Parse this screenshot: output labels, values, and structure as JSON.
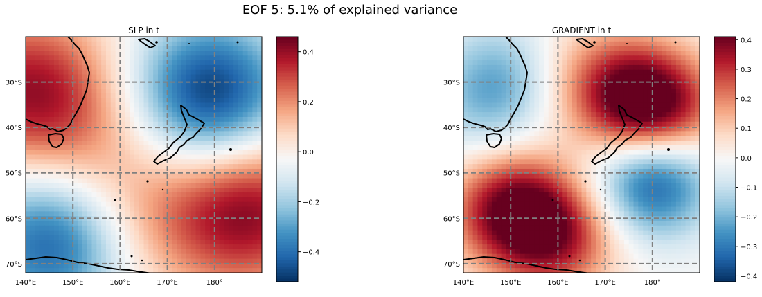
{
  "figure": {
    "suptitle": "EOF 5: 5.1% of explained variance"
  },
  "chart_data": [
    {
      "type": "heatmap",
      "title": "SLP in t",
      "x_ticks": [
        "140°E",
        "150°E",
        "160°E",
        "170°E",
        "180°"
      ],
      "y_ticks": [
        "30°S",
        "40°S",
        "50°S",
        "60°S",
        "70°S"
      ],
      "xlim": [
        140,
        190
      ],
      "ylim": [
        -72,
        -20
      ],
      "gridlines": true,
      "colormap": "RdBu_r",
      "colorbar": {
        "min": -0.52,
        "max": 0.46,
        "ticks": [
          "0.4",
          "0.2",
          "0.0",
          "−0.2",
          "−0.4"
        ],
        "tick_values": [
          0.4,
          0.2,
          0.0,
          -0.2,
          -0.4
        ]
      },
      "field_centers": [
        {
          "lon": 141,
          "lat": -32,
          "value": 0.38
        },
        {
          "lon": 179,
          "lat": -33,
          "value": -0.52
        },
        {
          "lon": 187,
          "lat": -58,
          "value": 0.42
        },
        {
          "lon": 146,
          "lat": -65,
          "value": -0.45
        },
        {
          "lon": 165,
          "lat": -60,
          "value": 0.15
        },
        {
          "lon": 155,
          "lat": -45,
          "value": 0.12
        }
      ]
    },
    {
      "type": "heatmap",
      "title": "GRADIENT in t",
      "x_ticks": [
        "140°E",
        "150°E",
        "160°E",
        "170°E",
        "180°"
      ],
      "y_ticks": [
        "30°S",
        "40°S",
        "50°S",
        "60°S",
        "70°S"
      ],
      "xlim": [
        140,
        190
      ],
      "ylim": [
        -72,
        -20
      ],
      "gridlines": true,
      "colormap": "RdBu_r",
      "colorbar": {
        "min": -0.42,
        "max": 0.41,
        "ticks": [
          "0.4",
          "0.3",
          "0.2",
          "0.1",
          "0.0",
          "−0.1",
          "−0.2",
          "−0.3",
          "−0.4"
        ],
        "tick_values": [
          0.4,
          0.3,
          0.2,
          0.1,
          0.0,
          -0.1,
          -0.2,
          -0.3,
          -0.4
        ]
      },
      "field_centers": [
        {
          "lon": 176,
          "lat": -34,
          "value": 0.36
        },
        {
          "lon": 183,
          "lat": -37,
          "value": 0.25
        },
        {
          "lon": 180,
          "lat": -51,
          "value": -0.4
        },
        {
          "lon": 150,
          "lat": -58,
          "value": 0.38
        },
        {
          "lon": 160,
          "lat": -64,
          "value": 0.3
        },
        {
          "lon": 145,
          "lat": -36,
          "value": -0.12
        },
        {
          "lon": 148,
          "lat": -28,
          "value": -0.15
        },
        {
          "lon": 165,
          "lat": -28,
          "value": 0.1
        }
      ]
    }
  ]
}
